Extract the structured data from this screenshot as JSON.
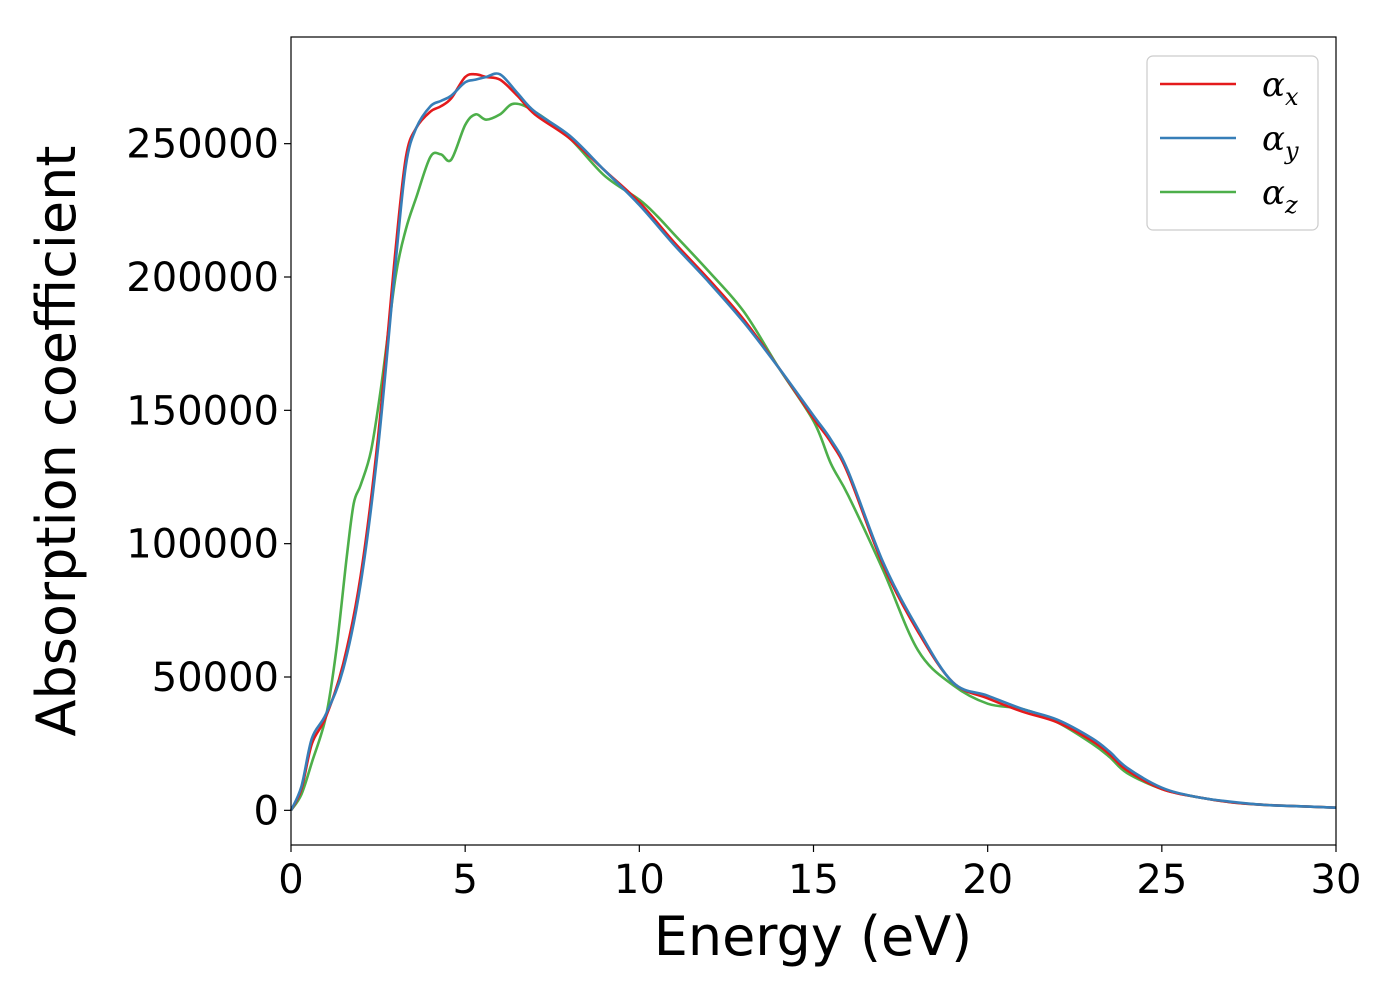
{
  "chart_data": {
    "type": "line",
    "xlabel": "Energy (eV)",
    "ylabel": "Absorption coefficient",
    "xlim": [
      0,
      30
    ],
    "ylim": [
      -13000,
      290000
    ],
    "xticks": [
      0,
      5,
      10,
      15,
      20,
      25,
      30
    ],
    "yticks": [
      0,
      50000,
      100000,
      150000,
      200000,
      250000
    ],
    "grid": false,
    "legend_position": "top-right",
    "series": [
      {
        "name": "α",
        "subscript": "x",
        "color": "#e41a1c",
        "x": [
          0,
          0.3,
          0.6,
          1.0,
          1.5,
          2.0,
          2.5,
          3.0,
          3.3,
          3.6,
          4.0,
          4.3,
          4.6,
          5.0,
          5.3,
          5.6,
          6.0,
          6.5,
          7.0,
          8.0,
          9.0,
          10.0,
          11.0,
          12.0,
          13.0,
          14.0,
          15.0,
          15.5,
          16.0,
          17.0,
          18.0,
          19.0,
          20.0,
          21.0,
          22.0,
          23.0,
          23.5,
          24.0,
          25.0,
          26.0,
          27.0,
          28.0,
          29.0,
          30.0
        ],
        "y": [
          0,
          8000,
          25000,
          35000,
          55000,
          88000,
          140000,
          210000,
          245000,
          256000,
          262000,
          264000,
          267000,
          275000,
          276000,
          275000,
          274000,
          268000,
          261000,
          252000,
          240000,
          228000,
          213000,
          199000,
          184000,
          166000,
          147000,
          138000,
          126000,
          92000,
          67000,
          48000,
          42000,
          37000,
          33000,
          26000,
          21000,
          15000,
          8000,
          5000,
          3000,
          2000,
          1500,
          1000
        ]
      },
      {
        "name": "α",
        "subscript": "y",
        "color": "#377eb8",
        "x": [
          0,
          0.3,
          0.6,
          1.0,
          1.5,
          2.0,
          2.5,
          3.0,
          3.3,
          3.6,
          4.0,
          4.3,
          4.6,
          5.0,
          5.3,
          5.6,
          6.0,
          6.5,
          7.0,
          8.0,
          9.0,
          10.0,
          11.0,
          12.0,
          13.0,
          14.0,
          15.0,
          15.5,
          16.0,
          17.0,
          18.0,
          19.0,
          20.0,
          21.0,
          22.0,
          23.0,
          23.5,
          24.0,
          25.0,
          26.0,
          27.0,
          28.0,
          29.0,
          30.0
        ],
        "y": [
          0,
          9000,
          27000,
          36000,
          53000,
          85000,
          136000,
          205000,
          242000,
          256000,
          264000,
          266000,
          268000,
          273000,
          274000,
          275000,
          276000,
          269000,
          262000,
          253000,
          240000,
          227000,
          212000,
          198000,
          183000,
          166000,
          148000,
          139000,
          127000,
          93000,
          68000,
          48000,
          43000,
          38000,
          34000,
          27000,
          22000,
          16000,
          8500,
          5000,
          3200,
          2000,
          1500,
          1000
        ]
      },
      {
        "name": "α",
        "subscript": "z",
        "color": "#4daf4a",
        "x": [
          0,
          0.3,
          0.6,
          1.0,
          1.3,
          1.6,
          1.8,
          2.0,
          2.3,
          2.6,
          3.0,
          3.3,
          3.6,
          4.0,
          4.3,
          4.6,
          5.0,
          5.3,
          5.6,
          6.0,
          6.4,
          7.0,
          8.0,
          9.0,
          10.0,
          10.5,
          11.0,
          12.0,
          13.0,
          14.0,
          15.0,
          15.5,
          16.0,
          17.0,
          18.0,
          19.0,
          20.0,
          21.0,
          22.0,
          23.0,
          23.5,
          24.0,
          25.0,
          26.0,
          27.0,
          28.0,
          29.0,
          30.0
        ],
        "y": [
          0,
          6000,
          18000,
          35000,
          60000,
          95000,
          115000,
          122000,
          135000,
          160000,
          200000,
          218000,
          230000,
          245000,
          246000,
          244000,
          257000,
          261000,
          259000,
          261000,
          265000,
          262000,
          252000,
          238000,
          229000,
          223000,
          216000,
          202000,
          187000,
          166000,
          146000,
          130000,
          118000,
          90000,
          60000,
          47000,
          40000,
          38000,
          33000,
          25000,
          20000,
          14000,
          8000,
          5000,
          3000,
          2000,
          1500,
          1000
        ]
      }
    ]
  }
}
